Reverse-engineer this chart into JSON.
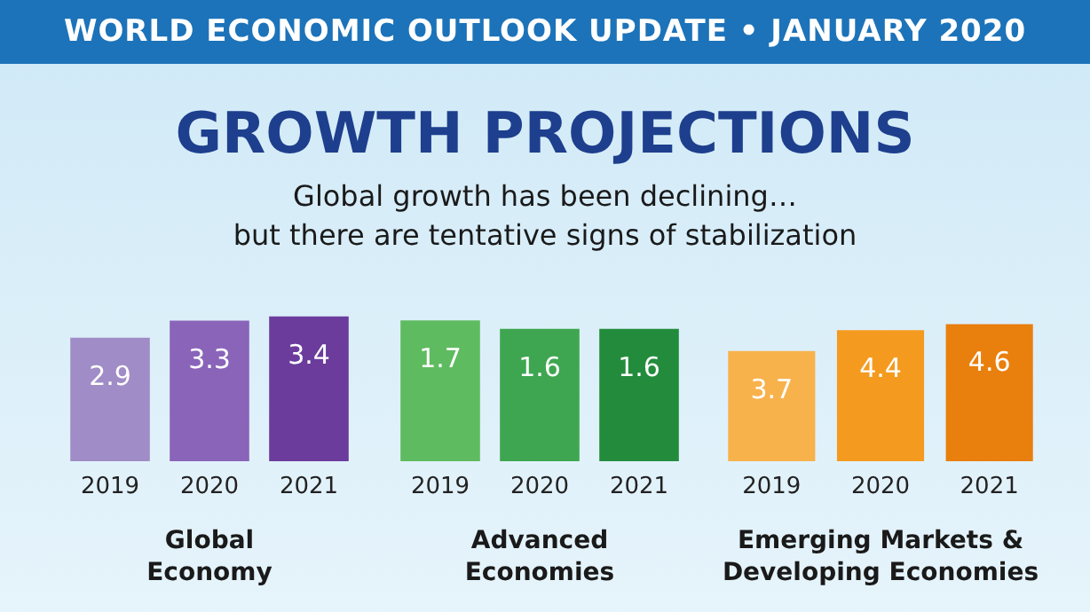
{
  "chart_data": [
    {
      "type": "bar",
      "title": "GROWTH PROJECTIONS",
      "subtitle": "Global growth has been declining…\nbut there are tentative signs of stabilization",
      "annotations": [
        "WORLD ECONOMIC OUTLOOK UPDATE • JANUARY 2020"
      ],
      "xlabel": "Global Economy",
      "categories": [
        "2019",
        "2020",
        "2021"
      ],
      "values": [
        2.9,
        3.3,
        3.4
      ],
      "colors": [
        "#a08cc6",
        "#8a64b9",
        "#6b3c9c"
      ],
      "data_labels": true
    },
    {
      "type": "bar",
      "xlabel": "Advanced Economies",
      "categories": [
        "2019",
        "2020",
        "2021"
      ],
      "values": [
        1.7,
        1.6,
        1.6
      ],
      "colors": [
        "#5fbb5f",
        "#3ea650",
        "#238c3c"
      ],
      "data_labels": true
    },
    {
      "type": "bar",
      "xlabel": "Emerging Markets & Developing Economies",
      "categories": [
        "2019",
        "2020",
        "2021"
      ],
      "values": [
        3.7,
        4.4,
        4.6
      ],
      "colors": [
        "#f8b24c",
        "#f49b1f",
        "#e97f0d"
      ],
      "data_labels": true
    }
  ]
}
